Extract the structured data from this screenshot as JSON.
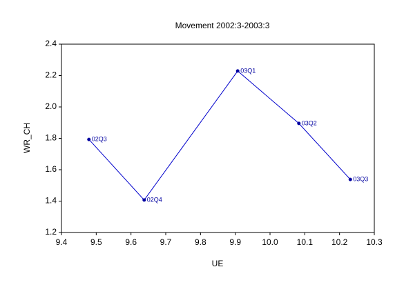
{
  "chart_data": {
    "type": "line",
    "title": "Movement 2002:3-2003:3",
    "x_label": "UE",
    "y_label": "WR_CH",
    "x": [
      9.479,
      9.638,
      9.907,
      10.083,
      10.231
    ],
    "values": [
      1.793,
      1.407,
      2.229,
      1.895,
      1.538
    ],
    "point_labels": [
      "02Q3",
      "02Q4",
      "03Q1",
      "03Q2",
      "03Q3"
    ],
    "color": "#0000cc",
    "xlim": [
      9.4,
      10.3
    ],
    "xticks": [
      9.4,
      9.5,
      9.6,
      9.7,
      9.8,
      9.9,
      {
        "value": 10,
        "label": "10.0"
      },
      10.1,
      10.2,
      10.3
    ],
    "ylim": [
      1.2,
      2.4
    ],
    "yticks": [
      1.2,
      1.4,
      1.6,
      1.8,
      {
        "value": 2,
        "label": "2.0"
      },
      2.2,
      2.4
    ],
    "grid": false
  }
}
